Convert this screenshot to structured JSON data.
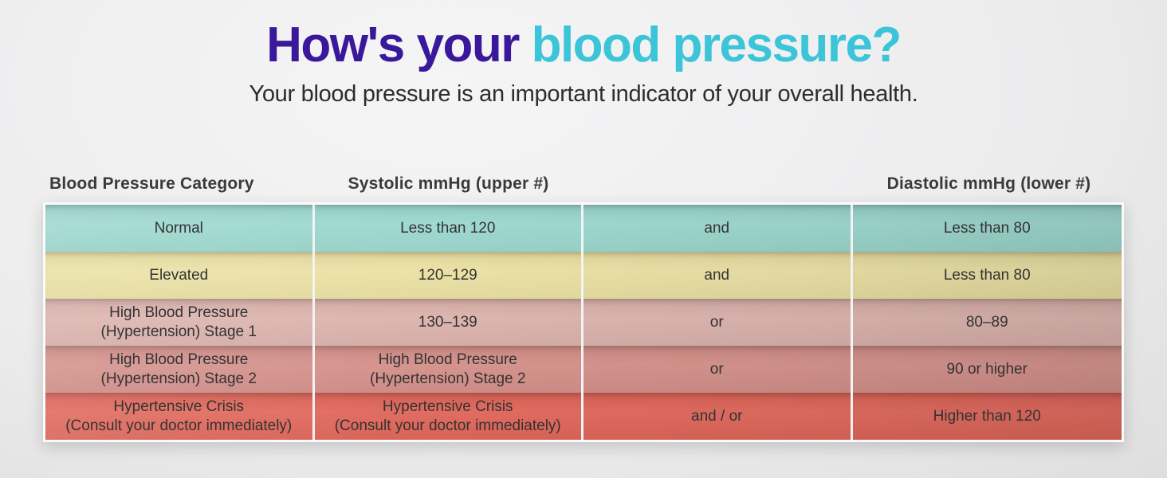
{
  "title": {
    "primary": "How's your",
    "accent": "blood pressure?"
  },
  "subtitle": "Your blood pressure is an important indicator of your overall health.",
  "colors": {
    "title_primary": "#39189b",
    "title_accent": "#3cc4d9",
    "header_text": "#3a3a3a",
    "cell_text": "#333333",
    "divider": "#f3f3f3"
  },
  "table": {
    "headers": {
      "category": "Blood Pressure Category",
      "systolic": "Systolic mmHg (upper #)",
      "connector": "",
      "diastolic": "Diastolic mmHg (lower #)"
    },
    "rows": [
      {
        "category": "Normal",
        "systolic": "Less than 120",
        "connector": "and",
        "diastolic": "Less than 80",
        "color": "#9cd8cf"
      },
      {
        "category": "Elevated",
        "systolic": "120–129",
        "connector": "and",
        "diastolic": "Less than 80",
        "color": "#ebe1a4"
      },
      {
        "category": "High Blood Pressure\n(Hypertension) Stage 1",
        "systolic": "130–139",
        "connector": "or",
        "diastolic": "80–89",
        "color": "#dcb3ad"
      },
      {
        "category": "High Blood Pressure\n(Hypertension) Stage 2",
        "systolic": "High Blood Pressure\n(Hypertension) Stage 2",
        "connector": "or",
        "diastolic": "90 or higher",
        "color": "#d4908a"
      },
      {
        "category": "Hypertensive Crisis\n(Consult your doctor immediately)",
        "systolic": "Hypertensive Crisis\n(Consult your doctor immediately)",
        "connector": "and / or",
        "diastolic": "Higher than 120",
        "color": "#e0665a"
      }
    ]
  },
  "chart_data": {
    "type": "table",
    "title": "How's your blood pressure?",
    "subtitle": "Your blood pressure is an important indicator of your overall health.",
    "columns": [
      "Blood Pressure Category",
      "Systolic mmHg (upper #)",
      "",
      "Diastolic mmHg (lower #)"
    ],
    "rows": [
      [
        "Normal",
        "Less than 120",
        "and",
        "Less than 80"
      ],
      [
        "Elevated",
        "120–129",
        "and",
        "Less than 80"
      ],
      [
        "High Blood Pressure (Hypertension) Stage 1",
        "130–139",
        "or",
        "80–89"
      ],
      [
        "High Blood Pressure (Hypertension) Stage 2",
        "High Blood Pressure (Hypertension) Stage 2",
        "or",
        "90 or higher"
      ],
      [
        "Hypertensive Crisis (Consult your doctor immediately)",
        "Hypertensive Crisis (Consult your doctor immediately)",
        "and / or",
        "Higher than 120"
      ]
    ],
    "row_colors": [
      "#9cd8cf",
      "#ebe1a4",
      "#dcb3ad",
      "#d4908a",
      "#e0665a"
    ]
  }
}
